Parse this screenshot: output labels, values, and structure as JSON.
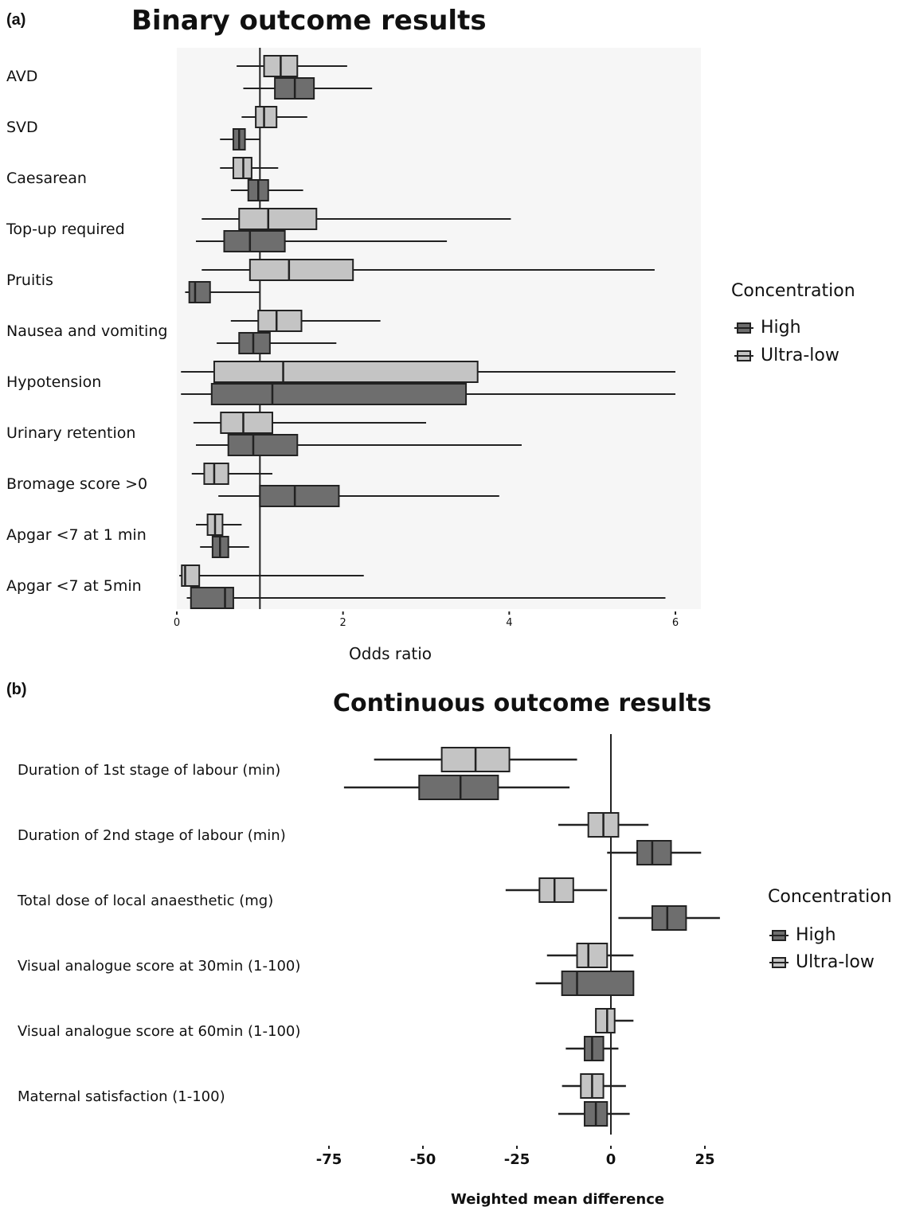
{
  "colors": {
    "high": "#6e6e6e",
    "ultra_low": "#c4c4c4",
    "stroke": "#222222"
  },
  "chart_data": [
    {
      "panel": "(a)",
      "type": "box",
      "title": "Binary outcome results",
      "xlabel": "Odds ratio",
      "xlim": [
        0,
        6
      ],
      "xticks": [
        "0",
        "2",
        "4",
        "6"
      ],
      "reference_line": 1,
      "legend": {
        "title": "Concentration",
        "position": "right",
        "entries": [
          "High",
          "Ultra-low"
        ]
      },
      "categories": [
        "AVD",
        "SVD",
        "Caesarean",
        "Top-up required",
        "Pruitis",
        "Nausea and vomiting",
        "Hypotension",
        "Urinary retention",
        "Bromage score >0",
        "Apgar <7 at 1 min",
        "Apgar <7 at 5min"
      ],
      "series": [
        {
          "name": "Ultra-low",
          "values": [
            {
              "low": 0.72,
              "q1": 1.05,
              "median": 1.25,
              "q3": 1.45,
              "high": 2.05
            },
            {
              "low": 0.78,
              "q1": 0.95,
              "median": 1.05,
              "q3": 1.2,
              "high": 1.57
            },
            {
              "low": 0.52,
              "q1": 0.68,
              "median": 0.8,
              "q3": 0.9,
              "high": 1.22
            },
            {
              "low": 0.3,
              "q1": 0.75,
              "median": 1.1,
              "q3": 1.68,
              "high": 4.02
            },
            {
              "low": 0.3,
              "q1": 0.88,
              "median": 1.35,
              "q3": 2.12,
              "high": 5.75
            },
            {
              "low": 0.65,
              "q1": 0.98,
              "median": 1.2,
              "q3": 1.5,
              "high": 2.45
            },
            {
              "low": 0.05,
              "q1": 0.45,
              "median": 1.28,
              "q3": 3.62,
              "high": 6.0
            },
            {
              "low": 0.2,
              "q1": 0.53,
              "median": 0.8,
              "q3": 1.15,
              "high": 3.0
            },
            {
              "low": 0.18,
              "q1": 0.33,
              "median": 0.45,
              "q3": 0.62,
              "high": 1.15
            },
            {
              "low": 0.23,
              "q1": 0.37,
              "median": 0.46,
              "q3": 0.55,
              "high": 0.78
            },
            {
              "low": 0.03,
              "q1": 0.06,
              "median": 0.1,
              "q3": 0.27,
              "high": 2.25
            }
          ]
        },
        {
          "name": "High",
          "values": [
            {
              "low": 0.8,
              "q1": 1.18,
              "median": 1.42,
              "q3": 1.65,
              "high": 2.35
            },
            {
              "low": 0.52,
              "q1": 0.68,
              "median": 0.75,
              "q3": 0.82,
              "high": 1.0
            },
            {
              "low": 0.65,
              "q1": 0.86,
              "median": 0.98,
              "q3": 1.1,
              "high": 1.52
            },
            {
              "low": 0.23,
              "q1": 0.57,
              "median": 0.88,
              "q3": 1.3,
              "high": 3.25
            },
            {
              "low": 0.1,
              "q1": 0.15,
              "median": 0.22,
              "q3": 0.4,
              "high": 1.0
            },
            {
              "low": 0.48,
              "q1": 0.75,
              "median": 0.92,
              "q3": 1.12,
              "high": 1.92
            },
            {
              "low": 0.05,
              "q1": 0.42,
              "median": 1.15,
              "q3": 3.48,
              "high": 6.0
            },
            {
              "low": 0.23,
              "q1": 0.62,
              "median": 0.92,
              "q3": 1.45,
              "high": 4.15
            },
            {
              "low": 0.5,
              "q1": 1.0,
              "median": 1.42,
              "q3": 1.95,
              "high": 3.88
            },
            {
              "low": 0.28,
              "q1": 0.43,
              "median": 0.52,
              "q3": 0.62,
              "high": 0.87
            },
            {
              "low": 0.12,
              "q1": 0.17,
              "median": 0.58,
              "q3": 0.68,
              "high": 5.88
            }
          ]
        }
      ]
    },
    {
      "panel": "(b)",
      "type": "box",
      "title": "Continuous outcome results",
      "xlabel": "Weighted mean difference",
      "xlim": [
        -80,
        30
      ],
      "xticks": [
        "-75",
        "-50",
        "-25",
        "0",
        "25"
      ],
      "reference_line": 0,
      "legend": {
        "title": "Concentration",
        "position": "right",
        "entries": [
          "High",
          "Ultra-low"
        ]
      },
      "categories": [
        "Duration of 1st stage of labour (min)",
        "Duration of 2nd stage of labour (min)",
        "Total dose of local anaesthetic (mg)",
        "Visual analogue score at 30min  (1-100)",
        "Visual analogue score at 60min (1-100)",
        "Maternal satisfaction (1-100)"
      ],
      "series": [
        {
          "name": "Ultra-low",
          "values": [
            {
              "low": -63,
              "q1": -45,
              "median": -36,
              "q3": -27,
              "high": -9
            },
            {
              "low": -14,
              "q1": -6,
              "median": -2,
              "q3": 2,
              "high": 10
            },
            {
              "low": -28,
              "q1": -19,
              "median": -15,
              "q3": -10,
              "high": -1
            },
            {
              "low": -17,
              "q1": -9,
              "median": -6,
              "q3": -1,
              "high": 6
            },
            {
              "low": -4,
              "q1": -4,
              "median": -1,
              "q3": 1,
              "high": 6
            },
            {
              "low": -13,
              "q1": -8,
              "median": -5,
              "q3": -2,
              "high": 4
            }
          ]
        },
        {
          "name": "High",
          "values": [
            {
              "low": -71,
              "q1": -51,
              "median": -40,
              "q3": -30,
              "high": -11
            },
            {
              "low": -1,
              "q1": 7,
              "median": 11,
              "q3": 16,
              "high": 24
            },
            {
              "low": 2,
              "q1": 11,
              "median": 15,
              "q3": 20,
              "high": 29
            },
            {
              "low": -20,
              "q1": -13,
              "median": -9,
              "q3": 6,
              "high": 6
            },
            {
              "low": -12,
              "q1": -7,
              "median": -5,
              "q3": -2,
              "high": 2
            },
            {
              "low": -14,
              "q1": -7,
              "median": -4,
              "q3": -1,
              "high": 5
            }
          ]
        }
      ]
    }
  ]
}
